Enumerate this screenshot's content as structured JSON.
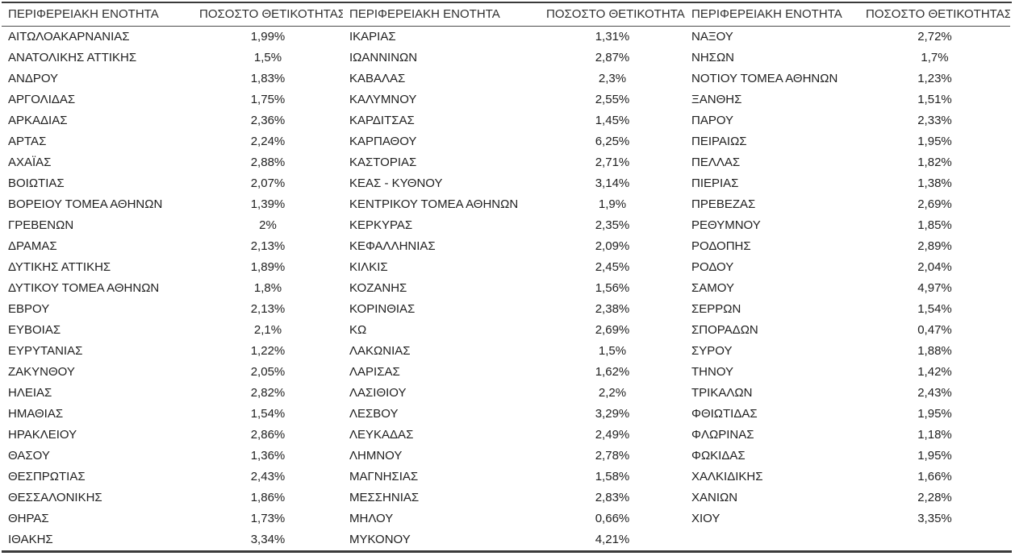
{
  "header": {
    "region_label": "ΠΕΡΙΦΕΡΕΙΑΚΗ ΕΝΟΤΗΤΑ",
    "positivity_label": "ΠΟΣΟΣΤΟ ΘΕΤΙΚΟΤΗΤΑΣ"
  },
  "table": {
    "columns": [
      {
        "rows": [
          {
            "region": "ΑΙΤΩΛΟΑΚΑΡΝΑΝΙΑΣ",
            "positivity": "1,99%"
          },
          {
            "region": "ΑΝΑΤΟΛΙΚΗΣ ΑΤΤΙΚΗΣ",
            "positivity": "1,5%"
          },
          {
            "region": "ΑΝΔΡΟΥ",
            "positivity": "1,83%"
          },
          {
            "region": "ΑΡΓΟΛΙΔΑΣ",
            "positivity": "1,75%"
          },
          {
            "region": "ΑΡΚΑΔΙΑΣ",
            "positivity": "2,36%"
          },
          {
            "region": "ΑΡΤΑΣ",
            "positivity": "2,24%"
          },
          {
            "region": "ΑΧΑΪΑΣ",
            "positivity": "2,88%"
          },
          {
            "region": "ΒΟΙΩΤΙΑΣ",
            "positivity": "2,07%"
          },
          {
            "region": "ΒΟΡΕΙΟΥ ΤΟΜΕΑ ΑΘΗΝΩΝ",
            "positivity": "1,39%"
          },
          {
            "region": "ΓΡΕΒΕΝΩΝ",
            "positivity": "2%"
          },
          {
            "region": "ΔΡΑΜΑΣ",
            "positivity": "2,13%"
          },
          {
            "region": "ΔΥΤΙΚΗΣ ΑΤΤΙΚΗΣ",
            "positivity": "1,89%"
          },
          {
            "region": "ΔΥΤΙΚΟΥ ΤΟΜΕΑ ΑΘΗΝΩΝ",
            "positivity": "1,8%"
          },
          {
            "region": "ΕΒΡΟΥ",
            "positivity": "2,13%"
          },
          {
            "region": "ΕΥΒΟΙΑΣ",
            "positivity": "2,1%"
          },
          {
            "region": "ΕΥΡΥΤΑΝΙΑΣ",
            "positivity": "1,22%"
          },
          {
            "region": "ΖΑΚΥΝΘΟΥ",
            "positivity": "2,05%"
          },
          {
            "region": "ΗΛΕΙΑΣ",
            "positivity": "2,82%"
          },
          {
            "region": "ΗΜΑΘΙΑΣ",
            "positivity": "1,54%"
          },
          {
            "region": "ΗΡΑΚΛΕΙΟΥ",
            "positivity": "2,86%"
          },
          {
            "region": "ΘΑΣΟΥ",
            "positivity": "1,36%"
          },
          {
            "region": "ΘΕΣΠΡΩΤΙΑΣ",
            "positivity": "2,43%"
          },
          {
            "region": "ΘΕΣΣΑΛΟΝΙΚΗΣ",
            "positivity": "1,86%"
          },
          {
            "region": "ΘΗΡΑΣ",
            "positivity": "1,73%"
          },
          {
            "region": "ΙΘΑΚΗΣ",
            "positivity": "3,34%"
          }
        ]
      },
      {
        "rows": [
          {
            "region": "ΙΚΑΡΙΑΣ",
            "positivity": "1,31%"
          },
          {
            "region": "ΙΩΑΝΝΙΝΩΝ",
            "positivity": "2,87%"
          },
          {
            "region": "ΚΑΒΑΛΑΣ",
            "positivity": "2,3%"
          },
          {
            "region": "ΚΑΛΥΜΝΟΥ",
            "positivity": "2,55%"
          },
          {
            "region": "ΚΑΡΔΙΤΣΑΣ",
            "positivity": "1,45%"
          },
          {
            "region": "ΚΑΡΠΑΘΟΥ",
            "positivity": "6,25%"
          },
          {
            "region": "ΚΑΣΤΟΡΙΑΣ",
            "positivity": "2,71%"
          },
          {
            "region": "ΚΕΑΣ - ΚΥΘΝΟΥ",
            "positivity": "3,14%"
          },
          {
            "region": "ΚΕΝΤΡΙΚΟΥ ΤΟΜΕΑ ΑΘΗΝΩΝ",
            "positivity": "1,9%"
          },
          {
            "region": "ΚΕΡΚΥΡΑΣ",
            "positivity": "2,35%"
          },
          {
            "region": "ΚΕΦΑΛΛΗΝΙΑΣ",
            "positivity": "2,09%"
          },
          {
            "region": "ΚΙΛΚΙΣ",
            "positivity": "2,45%"
          },
          {
            "region": "ΚΟΖΑΝΗΣ",
            "positivity": "1,56%"
          },
          {
            "region": "ΚΟΡΙΝΘΙΑΣ",
            "positivity": "2,38%"
          },
          {
            "region": "ΚΩ",
            "positivity": "2,69%"
          },
          {
            "region": "ΛΑΚΩΝΙΑΣ",
            "positivity": "1,5%"
          },
          {
            "region": "ΛΑΡΙΣΑΣ",
            "positivity": "1,62%"
          },
          {
            "region": "ΛΑΣΙΘΙΟΥ",
            "positivity": "2,2%"
          },
          {
            "region": "ΛΕΣΒΟΥ",
            "positivity": "3,29%"
          },
          {
            "region": "ΛΕΥΚΑΔΑΣ",
            "positivity": "2,49%"
          },
          {
            "region": "ΛΗΜΝΟΥ",
            "positivity": "2,78%"
          },
          {
            "region": "ΜΑΓΝΗΣΙΑΣ",
            "positivity": "1,58%"
          },
          {
            "region": "ΜΕΣΣΗΝΙΑΣ",
            "positivity": "2,83%"
          },
          {
            "region": "ΜΗΛΟΥ",
            "positivity": "0,66%"
          },
          {
            "region": "ΜΥΚΟΝΟΥ",
            "positivity": "4,21%"
          }
        ]
      },
      {
        "rows": [
          {
            "region": "ΝΑΞΟΥ",
            "positivity": "2,72%"
          },
          {
            "region": "ΝΗΣΩΝ",
            "positivity": "1,7%"
          },
          {
            "region": "ΝΟΤΙΟΥ ΤΟΜΕΑ ΑΘΗΝΩΝ",
            "positivity": "1,23%"
          },
          {
            "region": "ΞΑΝΘΗΣ",
            "positivity": "1,51%"
          },
          {
            "region": "ΠΑΡΟΥ",
            "positivity": "2,33%"
          },
          {
            "region": "ΠΕΙΡΑΙΩΣ",
            "positivity": "1,95%"
          },
          {
            "region": "ΠΕΛΛΑΣ",
            "positivity": "1,82%"
          },
          {
            "region": "ΠΙΕΡΙΑΣ",
            "positivity": "1,38%"
          },
          {
            "region": "ΠΡΕΒΕΖΑΣ",
            "positivity": "2,69%"
          },
          {
            "region": "ΡΕΘΥΜΝΟΥ",
            "positivity": "1,85%"
          },
          {
            "region": "ΡΟΔΟΠΗΣ",
            "positivity": "2,89%"
          },
          {
            "region": "ΡΟΔΟΥ",
            "positivity": "2,04%"
          },
          {
            "region": "ΣΑΜΟΥ",
            "positivity": "4,97%"
          },
          {
            "region": "ΣΕΡΡΩΝ",
            "positivity": "1,54%"
          },
          {
            "region": "ΣΠΟΡΑΔΩΝ",
            "positivity": "0,47%"
          },
          {
            "region": "ΣΥΡΟΥ",
            "positivity": "1,88%"
          },
          {
            "region": "ΤΗΝΟΥ",
            "positivity": "1,42%"
          },
          {
            "region": "ΤΡΙΚΑΛΩΝ",
            "positivity": "2,43%"
          },
          {
            "region": "ΦΘΙΩΤΙΔΑΣ",
            "positivity": "1,95%"
          },
          {
            "region": "ΦΛΩΡΙΝΑΣ",
            "positivity": "1,18%"
          },
          {
            "region": "ΦΩΚΙΔΑΣ",
            "positivity": "1,95%"
          },
          {
            "region": "ΧΑΛΚΙΔΙΚΗΣ",
            "positivity": "1,66%"
          },
          {
            "region": "ΧΑΝΙΩΝ",
            "positivity": "2,28%"
          },
          {
            "region": "ΧΙΟΥ",
            "positivity": "3,35%"
          }
        ]
      }
    ]
  }
}
